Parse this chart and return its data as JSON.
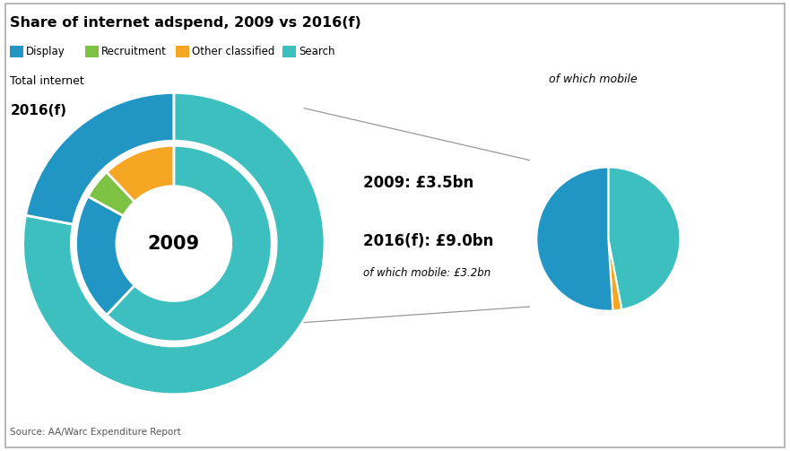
{
  "title": "Share of internet adspend, 2009 vs 2016(f)",
  "legend_items": [
    "Display",
    "Recruitment",
    "Other classified",
    "Search"
  ],
  "legend_colors": [
    "#2196C4",
    "#7DC242",
    "#F5A623",
    "#3DBFBF"
  ],
  "colors": {
    "display": "#2196C4",
    "recruitment": "#7DC242",
    "other_classified": "#F5A623",
    "search": "#3DBFBF"
  },
  "ring_2009": [
    {
      "cat": "Search",
      "val": 62
    },
    {
      "cat": "Display",
      "val": 21
    },
    {
      "cat": "Recruitment",
      "val": 5
    },
    {
      "cat": "Other classified",
      "val": 12
    }
  ],
  "ring_2016": [
    {
      "cat": "Search",
      "val": 78
    },
    {
      "cat": "Display",
      "val": 22
    }
  ],
  "mobile_pie": [
    {
      "cat": "Search",
      "val": 47
    },
    {
      "cat": "Other classified",
      "val": 2
    },
    {
      "cat": "Display",
      "val": 51
    }
  ],
  "text_2009": "2009: £3.5bn",
  "text_2016": "2016(f): £9.0bn",
  "text_mobile_value": "of which mobile: £3.2bn",
  "text_mobile_label": "of which mobile",
  "label_2016": "2016(f)",
  "label_2009": "2009",
  "total_internet_label": "Total internet",
  "source": "Source: AA/Warc Expenditure Report",
  "bg_color": "#FFFFFF"
}
